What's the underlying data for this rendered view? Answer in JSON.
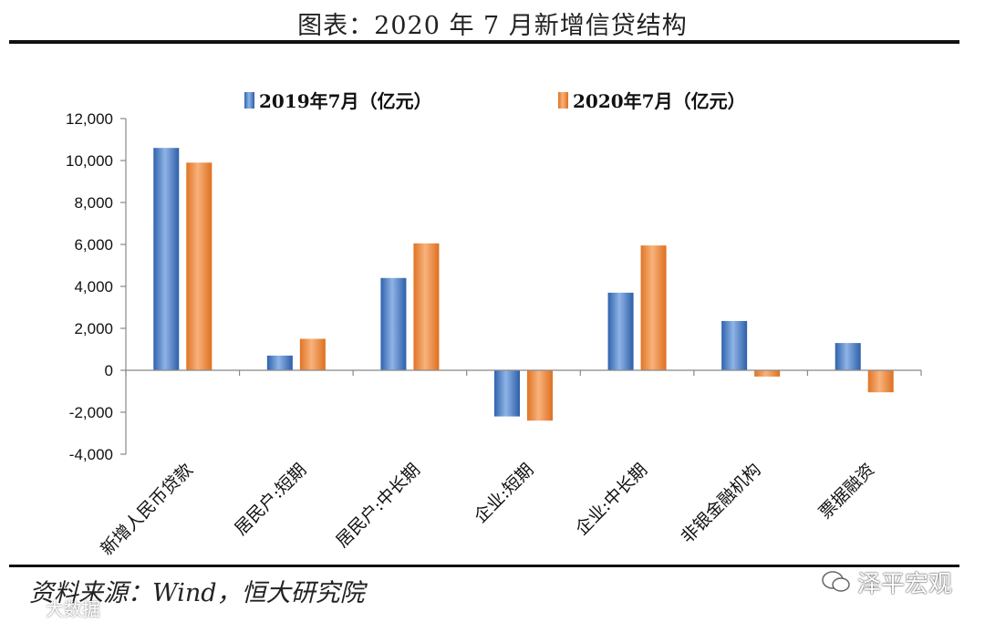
{
  "header": {
    "title": "图表：2020 年 7 月新增信贷结构"
  },
  "footer": {
    "source": "资料来源：Wind，恒大研究院"
  },
  "watermarks": {
    "brand": "泽平宏观",
    "corner": "大数据"
  },
  "colors": {
    "series1": "#4a7fc8",
    "series2": "#f08a3c",
    "axis": "#888888"
  },
  "chart_data": {
    "type": "bar",
    "categories": [
      "新增人民币贷款",
      "居民户:短期",
      "居民户:中长期",
      "企业:短期",
      "企业:中长期",
      "非银金融机构",
      "票据融资"
    ],
    "series": [
      {
        "name": "2019年7月（亿元）",
        "values": [
          10600,
          700,
          4400,
          -2200,
          3700,
          2350,
          1300
        ]
      },
      {
        "name": "2020年7月（亿元）",
        "values": [
          9900,
          1500,
          6050,
          -2400,
          5950,
          -300,
          -1050
        ]
      }
    ],
    "ylim": [
      -4000,
      12000
    ],
    "yticks": [
      12000,
      10000,
      8000,
      6000,
      4000,
      2000,
      0,
      -2000,
      -4000
    ],
    "ytick_labels": [
      "12,000",
      "10,000",
      "8,000",
      "6,000",
      "4,000",
      "2,000",
      "0",
      "-2,000",
      "-4,000"
    ],
    "legend_position": "top-center",
    "title": "",
    "xlabel": "",
    "ylabel": ""
  }
}
